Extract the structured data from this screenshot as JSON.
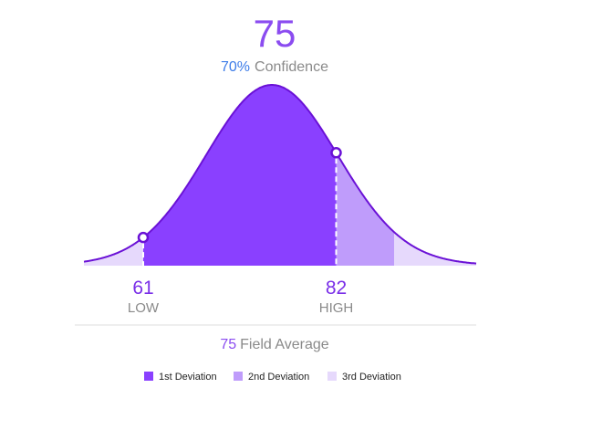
{
  "chart_data": {
    "type": "area",
    "title": "75",
    "confidence": {
      "percent": "70%",
      "label": "Confidence"
    },
    "mean": 75,
    "low": {
      "value": "61",
      "label": "LOW"
    },
    "high": {
      "value": "82",
      "label": "HIGH"
    },
    "field_average": {
      "value": "75",
      "label": "Field Average"
    },
    "legend": [
      {
        "label": "1st Deviation",
        "color": "#8a40ff"
      },
      {
        "label": "2nd Deviation",
        "color": "#bf9cfb"
      },
      {
        "label": "3rd Deviation",
        "color": "#e6d9fc"
      }
    ],
    "curve_color": "#6a11d6",
    "divider_color": "#dddddd"
  }
}
